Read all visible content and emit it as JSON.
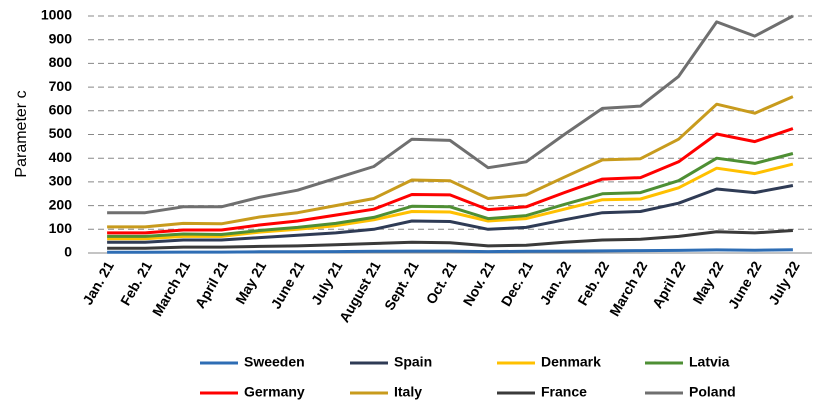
{
  "chart_data": {
    "type": "line",
    "y_label": "Parameter c",
    "categories": [
      "Jan. 21",
      "Feb. 21",
      "March 21",
      "April 21",
      "May 21",
      "June 21",
      "July 21",
      "August 21",
      "Sept. 21",
      "Oct. 21",
      "Nov. 21",
      "Dec. 21",
      "Jan. 22",
      "Feb. 22",
      "March 22",
      "April 22",
      "May 22",
      "June 22",
      "July 22"
    ],
    "series": [
      {
        "name": "Sweeden",
        "color": "#2e6db4",
        "values": [
          3,
          3,
          4,
          4,
          5,
          5,
          6,
          7,
          8,
          8,
          6,
          7,
          8,
          9,
          10,
          11,
          13,
          12,
          14
        ]
      },
      {
        "name": "Spain",
        "color": "#2f3b55",
        "values": [
          45,
          45,
          55,
          55,
          65,
          75,
          85,
          100,
          135,
          133,
          100,
          108,
          140,
          170,
          175,
          210,
          270,
          255,
          285
        ]
      },
      {
        "name": "Denmark",
        "color": "#ffc000",
        "values": [
          60,
          60,
          70,
          70,
          88,
          100,
          115,
          140,
          175,
          173,
          135,
          145,
          185,
          225,
          228,
          275,
          358,
          335,
          375
        ]
      },
      {
        "name": "Latvia",
        "color": "#4e8f34",
        "values": [
          70,
          70,
          80,
          78,
          95,
          108,
          125,
          150,
          197,
          195,
          145,
          158,
          205,
          250,
          255,
          305,
          400,
          378,
          420
        ]
      },
      {
        "name": "Germany",
        "color": "#ff0000",
        "values": [
          85,
          85,
          97,
          97,
          118,
          135,
          160,
          185,
          247,
          245,
          183,
          195,
          255,
          312,
          318,
          385,
          502,
          470,
          525
        ]
      },
      {
        "name": "Italy",
        "color": "#c89b1d",
        "values": [
          110,
          110,
          125,
          123,
          152,
          170,
          200,
          230,
          308,
          305,
          230,
          245,
          320,
          393,
          398,
          480,
          628,
          590,
          660
        ]
      },
      {
        "name": "France",
        "color": "#3a3a3a",
        "values": [
          20,
          20,
          25,
          25,
          28,
          30,
          35,
          40,
          45,
          43,
          30,
          33,
          45,
          55,
          58,
          70,
          90,
          85,
          95
        ]
      },
      {
        "name": "Poland",
        "color": "#6f6f6f",
        "values": [
          170,
          170,
          195,
          195,
          235,
          265,
          315,
          365,
          480,
          475,
          360,
          385,
          500,
          610,
          620,
          745,
          975,
          915,
          1000
        ]
      }
    ],
    "ylim": [
      0,
      1000
    ],
    "yticks": [
      0,
      100,
      200,
      300,
      400,
      500,
      600,
      700,
      800,
      900,
      1000
    ],
    "grid": true
  }
}
